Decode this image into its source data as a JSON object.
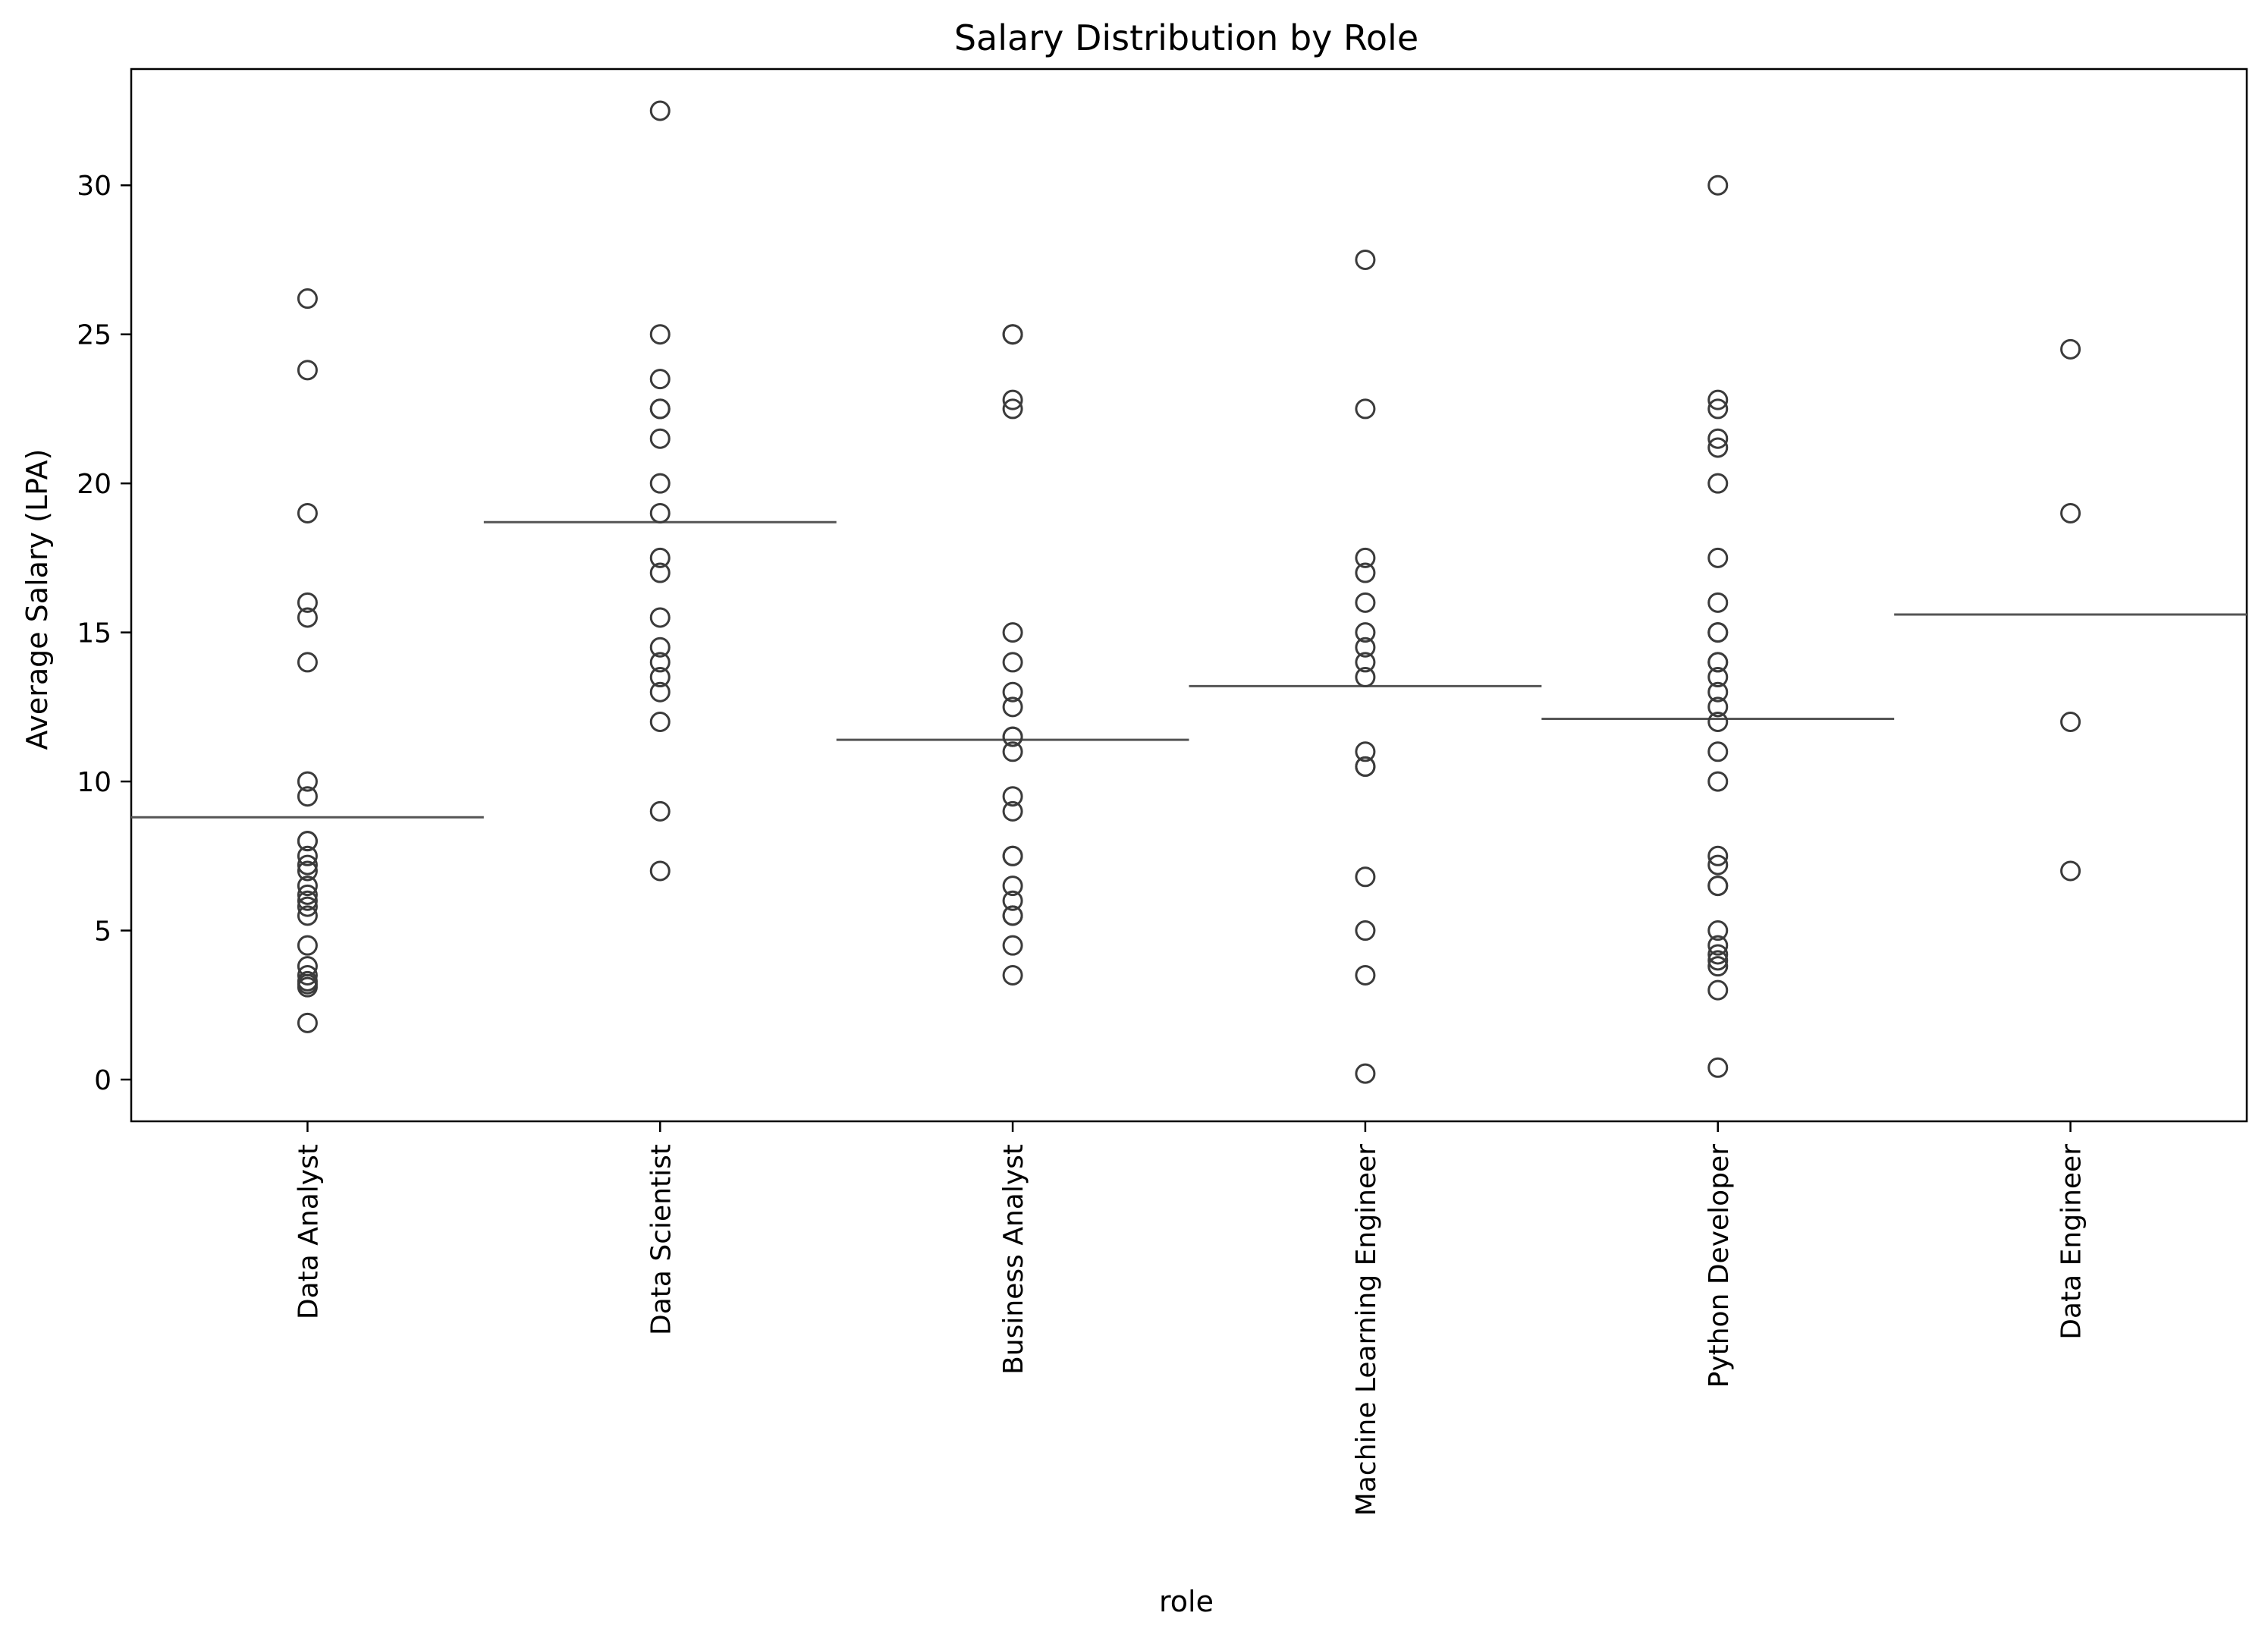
{
  "chart_data": {
    "type": "scatter",
    "title": "Salary Distribution by Role",
    "xlabel": "role",
    "ylabel": "Average Salary (LPA)",
    "ylim": [
      -1.4,
      33.9
    ],
    "yticks": [
      0,
      5,
      10,
      15,
      20,
      25,
      30
    ],
    "grid": false,
    "legend": "none",
    "colors": {
      "marker_edge": "#3b3b3b",
      "median_line": "#555555",
      "axes": "#000000"
    },
    "categories": [
      "Data Analyst",
      "Data Scientist",
      "Business Analyst",
      "Machine Learning Engineer",
      "Python Developer",
      "Data Engineer"
    ],
    "medians": [
      8.8,
      18.7,
      11.4,
      13.2,
      12.1,
      15.6
    ],
    "points": [
      [
        26.2,
        23.8,
        19,
        16,
        15.5,
        14,
        10,
        9.5,
        8,
        8,
        7.5,
        7.2,
        7,
        6.5,
        6.2,
        6,
        5.8,
        5.5,
        4.5,
        3.8,
        3.5,
        3.3,
        3.2,
        3.1,
        1.9
      ],
      [
        32.5,
        25,
        23.5,
        22.5,
        22.5,
        21.5,
        20,
        19,
        17.5,
        17,
        15.5,
        14.5,
        14,
        13.5,
        13,
        12,
        9,
        7
      ],
      [
        25,
        25,
        22.8,
        22.5,
        15,
        14,
        13,
        12.5,
        11.5,
        11.5,
        11,
        9.5,
        9,
        7.5,
        7.5,
        6.5,
        6,
        5.5,
        5.5,
        4.5,
        3.5
      ],
      [
        27.5,
        22.5,
        17.5,
        17,
        16,
        15,
        14.5,
        14,
        13.5,
        11,
        10.5,
        10.5,
        6.8,
        5,
        3.5,
        0.2
      ],
      [
        30,
        22.8,
        22.5,
        21.5,
        21.2,
        20,
        17.5,
        16,
        15,
        15,
        14,
        14,
        13.5,
        13,
        12.5,
        12,
        11,
        10,
        7.5,
        7.2,
        6.5,
        6.5,
        5,
        4.5,
        4.2,
        4,
        3.8,
        3,
        0.4
      ],
      [
        24.5,
        19,
        12,
        7
      ]
    ]
  }
}
